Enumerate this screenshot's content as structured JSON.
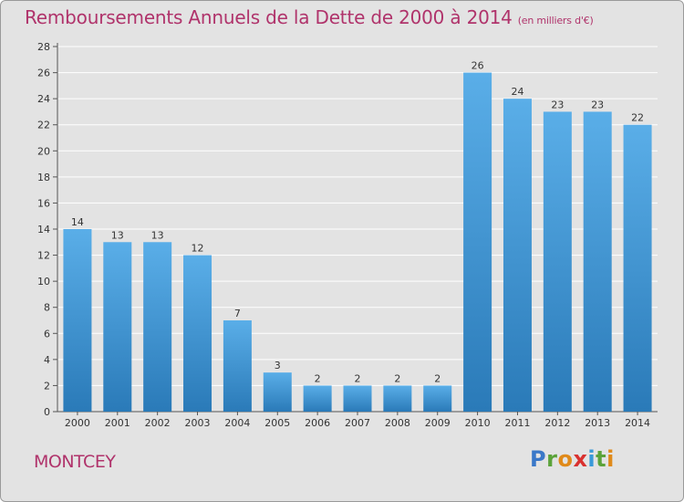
{
  "header": {
    "title": "Remboursements Annuels de la Dette de 2000 à 2014",
    "subtitle": "(en milliers d'€)"
  },
  "footer": {
    "commune": "MONTCEY",
    "logo": "Proxiti"
  },
  "colors": {
    "bar_light": "#5aaee8",
    "bar_dark": "#2a7ab8",
    "title": "#b0336b",
    "background": "#e3e3e3"
  },
  "chart_data": {
    "type": "bar",
    "title": "Remboursements Annuels de la Dette de 2000 à 2014",
    "subtitle": "(en milliers d'€)",
    "categories": [
      "2000",
      "2001",
      "2002",
      "2003",
      "2004",
      "2005",
      "2006",
      "2007",
      "2008",
      "2009",
      "2010",
      "2011",
      "2012",
      "2013",
      "2014"
    ],
    "values": [
      14,
      13,
      13,
      12,
      7,
      3,
      2,
      2,
      2,
      2,
      26,
      24,
      23,
      23,
      22
    ],
    "ylim": [
      0,
      28
    ],
    "yticks": [
      0,
      2,
      4,
      6,
      8,
      10,
      12,
      14,
      16,
      18,
      20,
      22,
      24,
      26,
      28
    ],
    "grid": true,
    "xlabel": "",
    "ylabel": ""
  }
}
